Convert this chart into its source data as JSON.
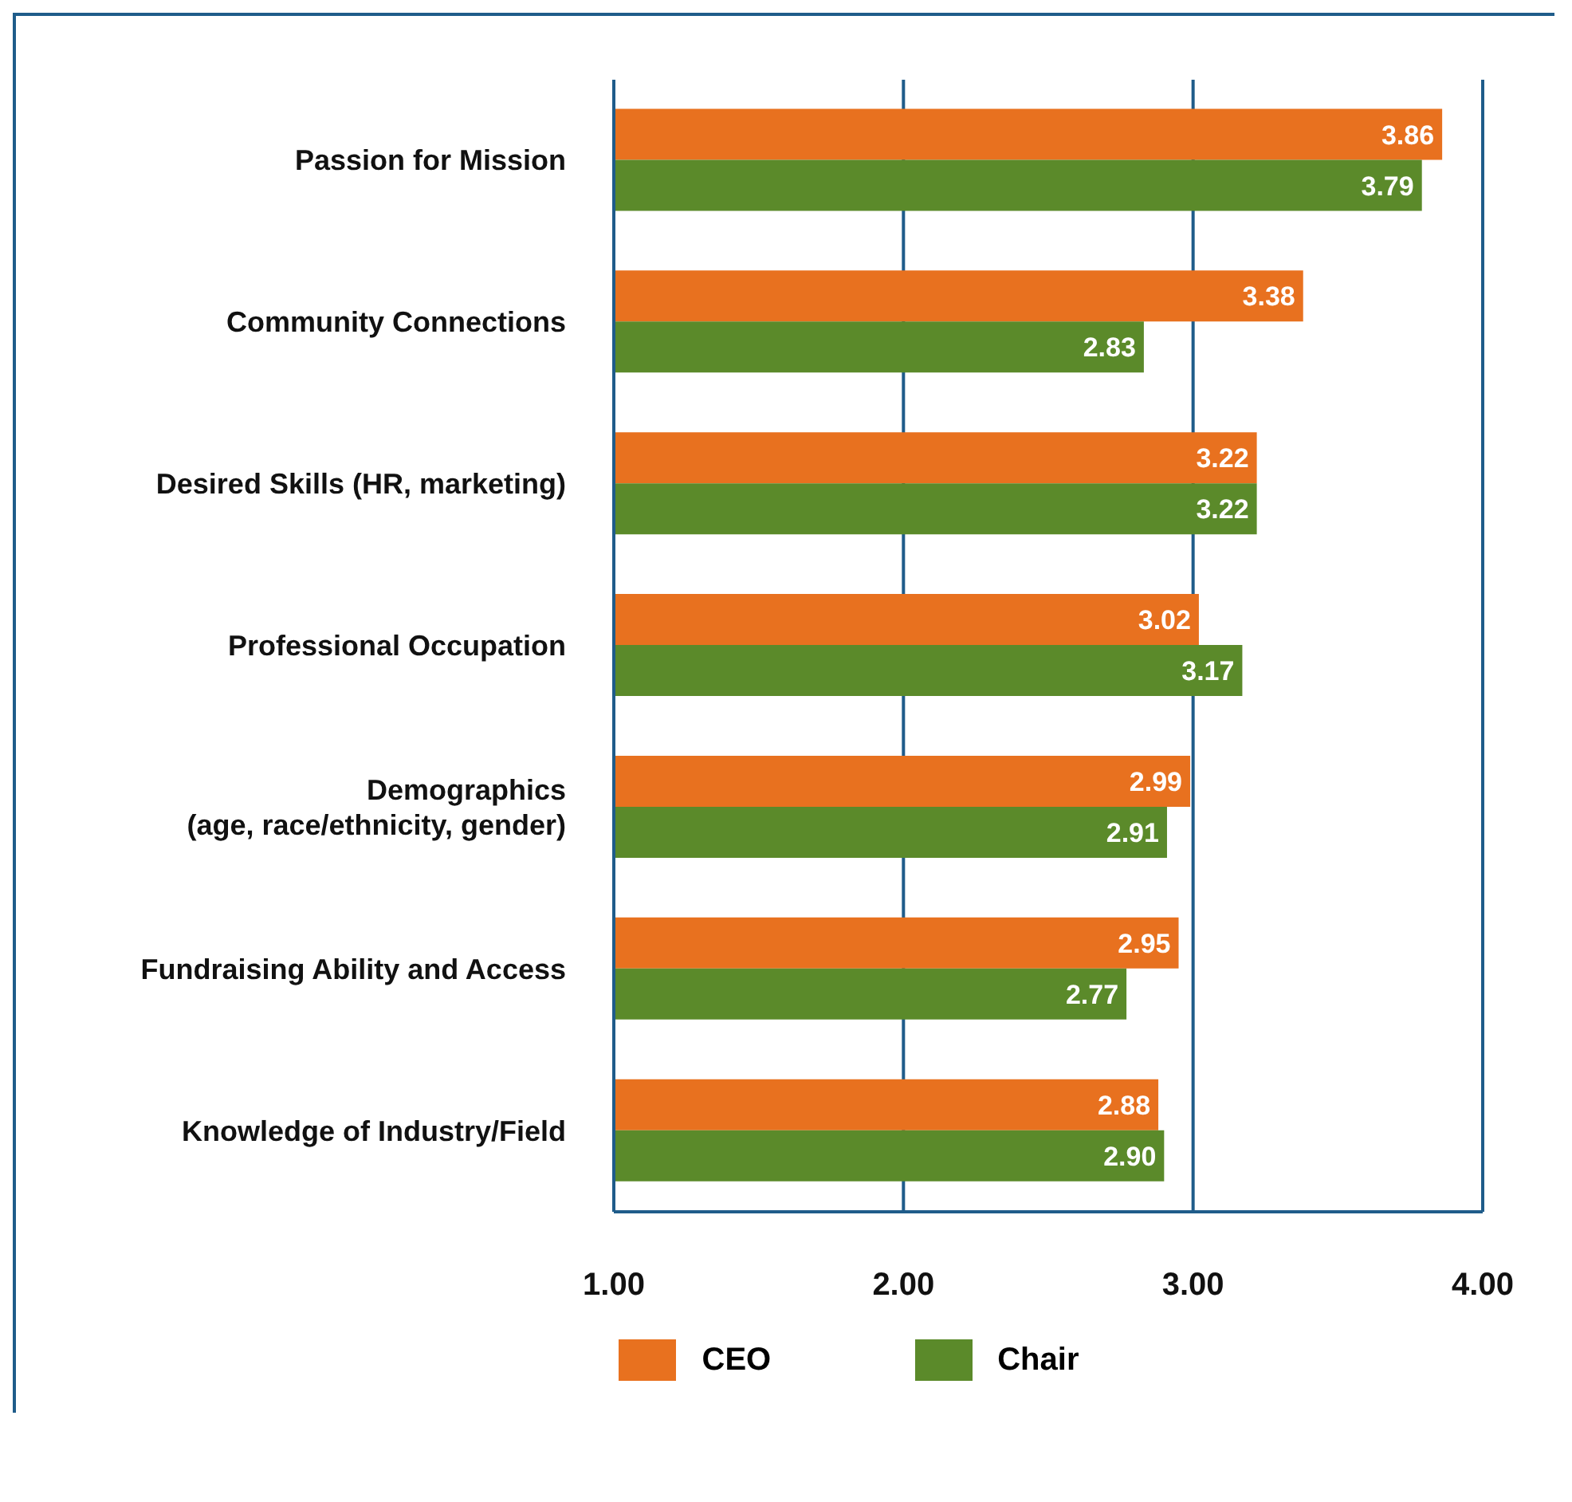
{
  "chart_data": {
    "type": "bar",
    "orientation": "horizontal",
    "categories": [
      "Passion for Mission",
      "Community Connections",
      "Desired Skills (HR, marketing)",
      "Professional Occupation",
      "Demographics\n(age, race/ethnicity, gender)",
      "Fundraising Ability and Access",
      "Knowledge of Industry/Field"
    ],
    "series": [
      {
        "name": "CEO",
        "color": "#e8711f",
        "values": [
          3.86,
          3.38,
          3.22,
          3.02,
          2.99,
          2.95,
          2.88
        ],
        "value_labels": [
          "3.86",
          "3.38",
          "3.22",
          "3.02",
          "2.99",
          "2.95",
          "2.88"
        ]
      },
      {
        "name": "Chair",
        "color": "#5b8a2a",
        "values": [
          3.79,
          2.83,
          3.22,
          3.17,
          2.91,
          2.77,
          2.9
        ],
        "value_labels": [
          "3.79",
          "2.83",
          "3.22",
          "3.17",
          "2.91",
          "2.77",
          "2.90"
        ]
      }
    ],
    "xlim": [
      1,
      4
    ],
    "xticks": [
      {
        "value": 1,
        "label": "1.00"
      },
      {
        "value": 2,
        "label": "2.00"
      },
      {
        "value": 3,
        "label": "3.00"
      },
      {
        "value": 4,
        "label": "4.00"
      }
    ],
    "grid": "x",
    "legend": "bottom"
  }
}
